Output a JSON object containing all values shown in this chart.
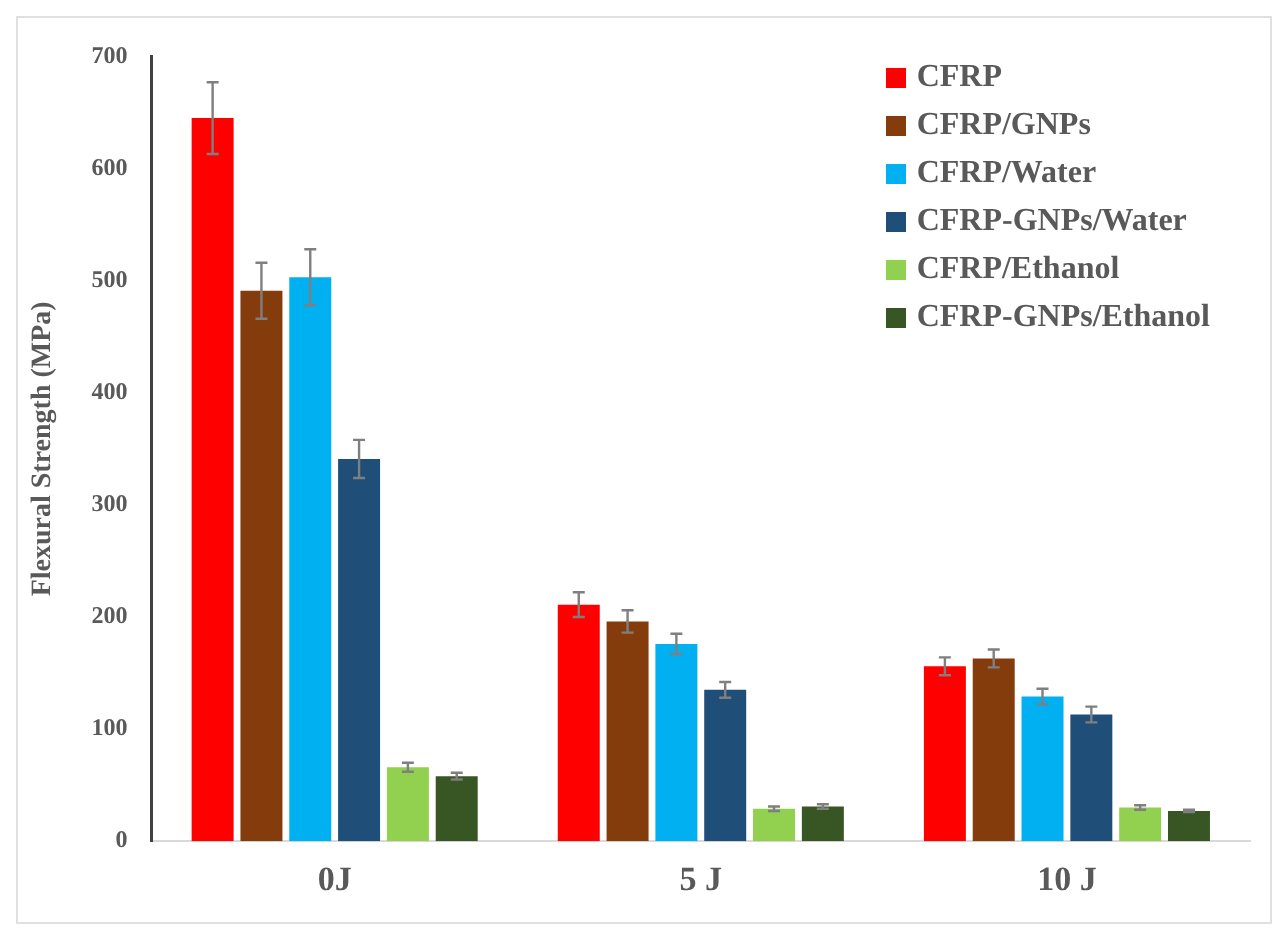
{
  "chart_data": {
    "type": "bar",
    "ylabel": "Flexural Strength (MPa)",
    "categories": [
      "0J",
      "5 J",
      "10 J"
    ],
    "ylim": [
      0,
      700
    ],
    "yticks": [
      0,
      100,
      200,
      300,
      400,
      500,
      600,
      700
    ],
    "grid": false,
    "legend": "top right",
    "series": [
      {
        "name": "CFRP",
        "color": "#ff0000",
        "values": [
          645,
          211,
          156
        ],
        "errors": [
          32,
          11,
          8
        ]
      },
      {
        "name": "CFRP/GNPs",
        "color": "#843c0c",
        "values": [
          491,
          196,
          163
        ],
        "errors": [
          25,
          10,
          8
        ]
      },
      {
        "name": "CFRP/Water",
        "color": "#00b0f0",
        "values": [
          503,
          176,
          129
        ],
        "errors": [
          25,
          9,
          7
        ]
      },
      {
        "name": "CFRP-GNPs/Water",
        "color": "#1f4e79",
        "values": [
          341,
          135,
          113
        ],
        "errors": [
          17,
          7,
          7
        ]
      },
      {
        "name": "CFRP/Ethanol",
        "color": "#92d050",
        "values": [
          66,
          29,
          30
        ],
        "errors": [
          4,
          2,
          2
        ]
      },
      {
        "name": "CFRP-GNPs/Ethanol",
        "color": "#375623",
        "values": [
          58,
          31,
          27
        ],
        "errors": [
          3,
          2,
          1
        ]
      }
    ]
  }
}
